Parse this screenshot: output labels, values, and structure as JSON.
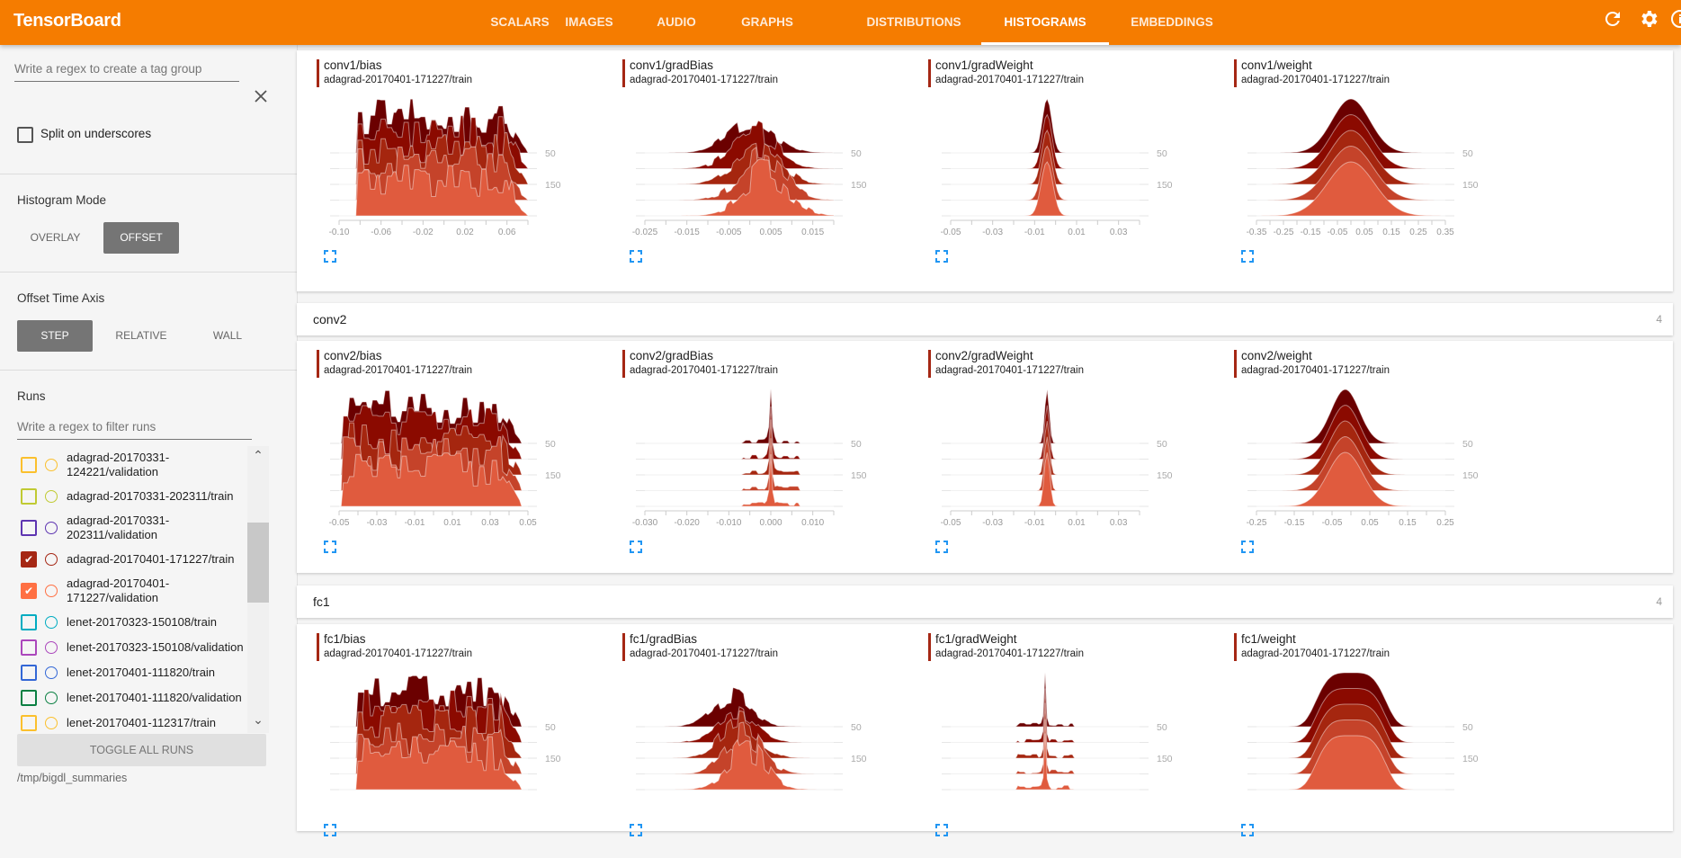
{
  "app": {
    "title": "TensorBoard"
  },
  "nav": {
    "tabs": [
      "SCALARS",
      "IMAGES",
      "AUDIO",
      "GRAPHS",
      "DISTRIBUTIONS",
      "HISTOGRAMS",
      "EMBEDDINGS"
    ],
    "active": "HISTOGRAMS"
  },
  "header_icons": [
    "refresh-icon",
    "settings-icon",
    "info-icon"
  ],
  "colors": {
    "accent": "#f57c00",
    "selected_run": "#a52714",
    "expand_icon": "#2196f3",
    "histogram_layers": [
      "#6b0000",
      "#8b0a00",
      "#a5260f",
      "#c5432a",
      "#e05b3e"
    ]
  },
  "sidebar": {
    "tag_group_placeholder": "Write a regex to create a tag group",
    "split_label": "Split on underscores",
    "split_checked": false,
    "histogram_mode": {
      "label": "Histogram Mode",
      "options": [
        "OVERLAY",
        "OFFSET"
      ],
      "selected": "OFFSET"
    },
    "offset_time_axis": {
      "label": "Offset Time Axis",
      "options": [
        "STEP",
        "RELATIVE",
        "WALL"
      ],
      "selected": "STEP"
    },
    "runs": {
      "label": "Runs",
      "filter_placeholder": "Write a regex to filter runs",
      "items": [
        {
          "name": "adagrad-20170331-124221/validation",
          "color": "#fbc02d",
          "checked": false
        },
        {
          "name": "adagrad-20170331-202311/train",
          "color": "#c0ca33",
          "checked": false
        },
        {
          "name": "adagrad-20170331-202311/validation",
          "color": "#5e35b1",
          "checked": false
        },
        {
          "name": "adagrad-20170401-171227/train",
          "color": "#a52714",
          "checked": true
        },
        {
          "name": "adagrad-20170401-171227/validation",
          "color": "#ff7043",
          "checked": true
        },
        {
          "name": "lenet-20170323-150108/train",
          "color": "#00acc1",
          "checked": false
        },
        {
          "name": "lenet-20170323-150108/validation",
          "color": "#ab47bc",
          "checked": false
        },
        {
          "name": "lenet-20170401-111820/train",
          "color": "#3367d6",
          "checked": false
        },
        {
          "name": "lenet-20170401-111820/validation",
          "color": "#0b8043",
          "checked": false
        },
        {
          "name": "lenet-20170401-112317/train",
          "color": "#fbc02d",
          "checked": false
        }
      ],
      "toggle_label": "TOGGLE ALL RUNS"
    },
    "logdir": "/tmp/bigdl_summaries"
  },
  "sections": [
    {
      "title": null,
      "count": null,
      "charts": [
        {
          "tag": "conv1/bias",
          "run": "adagrad-20170401-171227/train",
          "xlim": [
            -0.1,
            0.08
          ],
          "xticks": [
            "-0.10",
            "-0.06",
            "-0.02",
            "0.02",
            "0.06"
          ],
          "step_labels": [
            "50",
            "150"
          ]
        },
        {
          "tag": "conv1/gradBias",
          "run": "adagrad-20170401-171227/train",
          "xlim": [
            -0.025,
            0.02
          ],
          "xticks": [
            "-0.025",
            "-0.015",
            "-0.005",
            "0.005",
            "0.015"
          ],
          "step_labels": [
            "50",
            "150"
          ]
        },
        {
          "tag": "conv1/gradWeight",
          "run": "adagrad-20170401-171227/train",
          "xlim": [
            -0.05,
            0.04
          ],
          "xticks": [
            "-0.05",
            "-0.03",
            "-0.01",
            "0.01",
            "0.03"
          ],
          "step_labels": [
            "50",
            "150"
          ]
        },
        {
          "tag": "conv1/weight",
          "run": "adagrad-20170401-171227/train",
          "xlim": [
            -0.35,
            0.35
          ],
          "xticks": [
            "-0.35",
            "-0.25",
            "-0.15",
            "-0.05",
            "0.05",
            "0.15",
            "0.25",
            "0.35"
          ],
          "step_labels": [
            "50",
            "150"
          ]
        }
      ]
    },
    {
      "title": "conv2",
      "count": "4",
      "charts": [
        {
          "tag": "conv2/bias",
          "run": "adagrad-20170401-171227/train",
          "xlim": [
            -0.05,
            0.05
          ],
          "xticks": [
            "-0.05",
            "-0.03",
            "-0.01",
            "0.01",
            "0.03",
            "0.05"
          ],
          "step_labels": [
            "50",
            "150"
          ]
        },
        {
          "tag": "conv2/gradBias",
          "run": "adagrad-20170401-171227/train",
          "xlim": [
            -0.03,
            0.015
          ],
          "xticks": [
            "-0.030",
            "-0.020",
            "-0.010",
            "0.000",
            "0.010"
          ],
          "step_labels": [
            "50",
            "150"
          ]
        },
        {
          "tag": "conv2/gradWeight",
          "run": "adagrad-20170401-171227/train",
          "xlim": [
            -0.05,
            0.04
          ],
          "xticks": [
            "-0.05",
            "-0.03",
            "-0.01",
            "0.01",
            "0.03"
          ],
          "step_labels": [
            "50",
            "150"
          ]
        },
        {
          "tag": "conv2/weight",
          "run": "adagrad-20170401-171227/train",
          "xlim": [
            -0.25,
            0.25
          ],
          "xticks": [
            "-0.25",
            "-0.15",
            "-0.05",
            "0.05",
            "0.15",
            "0.25"
          ],
          "step_labels": [
            "50",
            "150"
          ]
        }
      ]
    },
    {
      "title": "fc1",
      "count": "4",
      "charts": [
        {
          "tag": "fc1/bias",
          "run": "adagrad-20170401-171227/train",
          "xlim": null,
          "xticks": [],
          "step_labels": [
            "50",
            "150"
          ]
        },
        {
          "tag": "fc1/gradBias",
          "run": "adagrad-20170401-171227/train",
          "xlim": null,
          "xticks": [],
          "step_labels": [
            "50",
            "150"
          ]
        },
        {
          "tag": "fc1/gradWeight",
          "run": "adagrad-20170401-171227/train",
          "xlim": null,
          "xticks": [],
          "step_labels": [
            "50",
            "150"
          ]
        },
        {
          "tag": "fc1/weight",
          "run": "adagrad-20170401-171227/train",
          "xlim": null,
          "xticks": [],
          "step_labels": [
            "50",
            "150"
          ]
        }
      ]
    }
  ]
}
